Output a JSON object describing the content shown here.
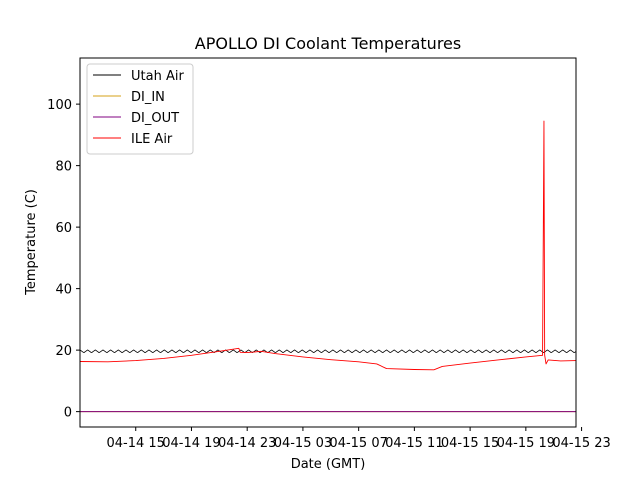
{
  "chart_data": {
    "type": "line",
    "title": "APOLLO DI Coolant Temperatures",
    "xlabel": "Date (GMT)",
    "ylabel": "Temperature (C)",
    "xlim_hours": [
      -1.0,
      34.6
    ],
    "ylim": [
      -5,
      115
    ],
    "x_ticks": [
      {
        "hours": 3,
        "label": "04-14 15"
      },
      {
        "hours": 7,
        "label": "04-14 19"
      },
      {
        "hours": 11,
        "label": "04-14 23"
      },
      {
        "hours": 15,
        "label": "04-15 03"
      },
      {
        "hours": 19,
        "label": "04-15 07"
      },
      {
        "hours": 23,
        "label": "04-15 11"
      },
      {
        "hours": 27,
        "label": "04-15 15"
      },
      {
        "hours": 31,
        "label": "04-15 19"
      },
      {
        "hours": 35,
        "label": "04-15 23"
      }
    ],
    "y_ticks": [
      0,
      20,
      40,
      60,
      80,
      100
    ],
    "legend_position": "top-left",
    "series": [
      {
        "name": "Utah Air",
        "color": "#000000",
        "base": 19.6,
        "oscillation_amplitude": 0.45,
        "oscillation_period_hours": 0.55,
        "points": [
          [
            -1.0,
            19.6
          ],
          [
            34.6,
            19.6
          ]
        ]
      },
      {
        "name": "DI_IN",
        "color": "#d4a017",
        "points": [
          [
            -1.0,
            0.0
          ],
          [
            34.6,
            0.0
          ]
        ]
      },
      {
        "name": "DI_OUT",
        "color": "#800080",
        "points": [
          [
            -1.0,
            0.0
          ],
          [
            34.6,
            0.0
          ]
        ]
      },
      {
        "name": "ILE Air",
        "color": "#ff0000",
        "points": [
          [
            -1.0,
            16.3
          ],
          [
            1.0,
            16.2
          ],
          [
            3.0,
            16.6
          ],
          [
            5.0,
            17.3
          ],
          [
            7.0,
            18.3
          ],
          [
            9.0,
            19.6
          ],
          [
            10.4,
            20.6
          ],
          [
            10.5,
            19.3
          ],
          [
            11.0,
            19.2
          ],
          [
            12.0,
            19.6
          ],
          [
            13.0,
            18.9
          ],
          [
            15.0,
            17.8
          ],
          [
            17.0,
            16.9
          ],
          [
            19.0,
            16.2
          ],
          [
            20.3,
            15.5
          ],
          [
            21.0,
            14.0
          ],
          [
            23.0,
            13.7
          ],
          [
            24.4,
            13.6
          ],
          [
            25.0,
            14.7
          ],
          [
            27.0,
            15.8
          ],
          [
            29.0,
            16.8
          ],
          [
            31.0,
            17.8
          ],
          [
            32.2,
            18.3
          ],
          [
            32.3,
            94.5
          ],
          [
            32.35,
            18.4
          ],
          [
            32.45,
            15.5
          ],
          [
            32.6,
            16.8
          ],
          [
            33.5,
            16.5
          ],
          [
            34.6,
            16.6
          ]
        ]
      }
    ]
  }
}
